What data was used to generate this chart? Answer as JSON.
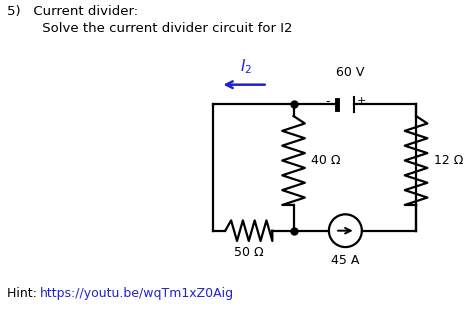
{
  "title_line1": "5)   Current divider:",
  "title_line2": "     Solve the current divider circuit for I2",
  "hint_prefix": "Hint: ",
  "hint_url": "https://youtu.be/wqTm1xZ0Aig",
  "label_60V": "60 V",
  "label_40ohm": "40 Ω",
  "label_12ohm": "12 Ω",
  "label_50ohm": "50 Ω",
  "label_45A": "45 A",
  "bg_color": "#ffffff",
  "text_color": "#000000",
  "blue_color": "#2222cc",
  "circuit_color": "#000000",
  "TL": [
    4.5,
    4.6
  ],
  "TM": [
    6.2,
    4.6
  ],
  "TR": [
    8.8,
    4.6
  ],
  "BL": [
    4.5,
    1.9
  ],
  "BM": [
    6.2,
    1.9
  ],
  "BR": [
    8.8,
    1.9
  ]
}
